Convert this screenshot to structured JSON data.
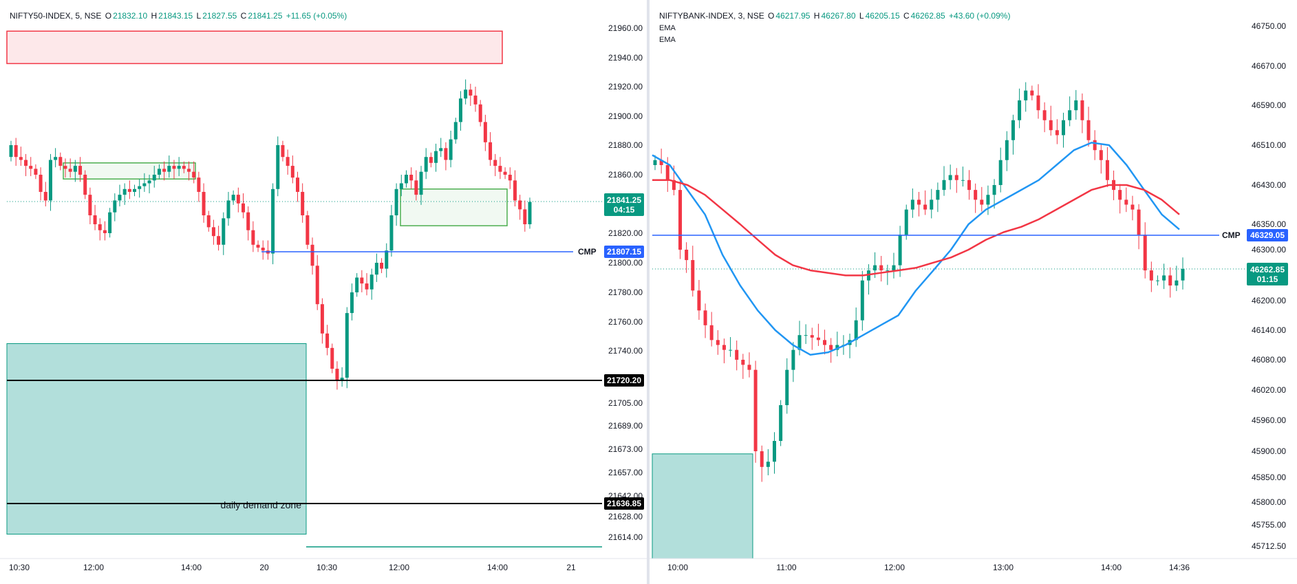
{
  "left": {
    "header": {
      "symbol": "NIFTY50-INDEX, 5, NSE",
      "open_label": "O",
      "open": "21832.10",
      "high_label": "H",
      "high": "21843.15",
      "low_label": "L",
      "low": "21827.55",
      "close_label": "C",
      "close": "21841.25",
      "change": "+11.65 (+0.05%)"
    },
    "tags": {
      "last_price": "21841.25",
      "countdown": "04:15",
      "cmp_price": "21807.15",
      "cmp_label": "CMP",
      "level_1": "21720.20",
      "level_2": "21636.85"
    },
    "zone_label": "daily demand zone"
  },
  "right": {
    "header": {
      "symbol": "NIFTYBANK-INDEX, 3, NSE",
      "open_label": "O",
      "open": "46217.95",
      "high_label": "H",
      "high": "46267.80",
      "low_label": "L",
      "low": "46205.15",
      "close_label": "C",
      "close": "46262.85",
      "change": "+43.60 (+0.09%)"
    },
    "ema_labels": [
      "EMA",
      "EMA"
    ],
    "tags": {
      "last_price": "46262.85",
      "countdown": "01:15",
      "cmp_price": "46329.05",
      "cmp_label": "CMP"
    }
  },
  "colors": {
    "up": "#089981",
    "down": "#f23645",
    "cmp_line": "#2962ff",
    "ema_fast": "#2196f3",
    "ema_slow": "#f23645",
    "demand_fill": "#b2dfdb",
    "supply_fill": "#fde8ea"
  },
  "chart_data": [
    {
      "type": "candlestick",
      "title": "NIFTY50-INDEX, 5, NSE",
      "y_tick_labels": [
        "21960.00",
        "21940.00",
        "21920.00",
        "21900.00",
        "21880.00",
        "21860.00",
        "21841.25",
        "21820.00",
        "21807.15",
        "21800.00",
        "21780.00",
        "21760.00",
        "21740.00",
        "21720.20",
        "21705.00",
        "21689.00",
        "21673.00",
        "21657.00",
        "21642.00",
        "21636.85",
        "21628.00",
        "21614.00"
      ],
      "x_tick_labels": [
        "10:30",
        "12:00",
        "14:00",
        "20",
        "10:30",
        "12:00",
        "14:00",
        "21"
      ],
      "ylim": [
        21610,
        21970
      ],
      "close_path": [
        21880,
        21872,
        21870,
        21866,
        21864,
        21860,
        21848,
        21842,
        21870,
        21872,
        21866,
        21864,
        21862,
        21866,
        21860,
        21846,
        21832,
        21826,
        21822,
        21820,
        21834,
        21842,
        21846,
        21850,
        21848,
        21850,
        21852,
        21854,
        21856,
        21860,
        21864,
        21862,
        21866,
        21864,
        21866,
        21864,
        21862,
        21858,
        21848,
        21832,
        21824,
        21818,
        21812,
        21830,
        21842,
        21846,
        21840,
        21834,
        21822,
        21812,
        21810,
        21808,
        21806,
        21850,
        21880,
        21872,
        21866,
        21858,
        21848,
        21832,
        21812,
        21798,
        21772,
        21752,
        21742,
        21728,
        21720,
        21722,
        21766,
        21780,
        21790,
        21786,
        21782,
        21792,
        21800,
        21796,
        21808,
        21832,
        21850,
        21854,
        21860,
        21856,
        21846,
        21862,
        21872,
        21868,
        21876,
        21878,
        21870,
        21884,
        21896,
        21912,
        21918,
        21914,
        21908,
        21896,
        21882,
        21870,
        21866,
        21862,
        21860,
        21856,
        21842,
        21836,
        21826,
        21841
      ],
      "cmp_level": 21807.15,
      "horizontal_levels": [
        21720.2,
        21636.85
      ],
      "zones": [
        {
          "kind": "supply",
          "y_top": 21958,
          "y_bottom": 21936
        },
        {
          "kind": "demand",
          "label": "daily demand zone",
          "y_top": 21745,
          "y_bottom": 21610
        },
        {
          "kind": "box",
          "y_top": 21868,
          "y_bottom": 21857
        },
        {
          "kind": "box",
          "y_top": 21850,
          "y_bottom": 21825
        }
      ]
    },
    {
      "type": "candlestick",
      "title": "NIFTYBANK-INDEX, 3, NSE",
      "y_tick_labels": [
        "46750.00",
        "46670.00",
        "46590.00",
        "46510.00",
        "46430.00",
        "46350.00",
        "46329.05",
        "46300.00",
        "46262.85",
        "46200.00",
        "46140.00",
        "46080.00",
        "46020.00",
        "45960.00",
        "45900.00",
        "45850.00",
        "45800.00",
        "45755.00",
        "45712.50"
      ],
      "x_tick_labels": [
        "10:00",
        "11:00",
        "12:00",
        "13:00",
        "14:00",
        "14:36"
      ],
      "ylim": [
        45690,
        46780
      ],
      "close_path": [
        46480,
        46470,
        46440,
        46420,
        46300,
        46280,
        46220,
        46180,
        46150,
        46120,
        46110,
        46100,
        46100,
        46080,
        46070,
        46060,
        45900,
        45870,
        45880,
        45920,
        45990,
        46060,
        46100,
        46130,
        46130,
        46125,
        46120,
        46110,
        46100,
        46110,
        46110,
        46120,
        46160,
        46240,
        46260,
        46270,
        46260,
        46260,
        46270,
        46330,
        46380,
        46400,
        46390,
        46380,
        46400,
        46420,
        46440,
        46450,
        46440,
        46440,
        46420,
        46400,
        46390,
        46410,
        46430,
        46480,
        46520,
        46560,
        46600,
        46620,
        46610,
        46580,
        46560,
        46540,
        46530,
        46560,
        46580,
        46600,
        46560,
        46520,
        46500,
        46480,
        46440,
        46420,
        46400,
        46390,
        46380,
        46330,
        46260,
        46240,
        46240,
        46250,
        46230,
        46240,
        46263
      ],
      "cmp_level": 46329.05,
      "series": [
        {
          "name": "EMA",
          "values": [
            46490,
            46470,
            46420,
            46370,
            46290,
            46230,
            46180,
            46140,
            46110,
            46090,
            46095,
            46110,
            46130,
            46150,
            46170,
            46220,
            46260,
            46300,
            46350,
            46380,
            46400,
            46420,
            46440,
            46470,
            46500,
            46515,
            46510,
            46470,
            46420,
            46370,
            46340
          ]
        },
        {
          "name": "EMA",
          "values": [
            46440,
            46440,
            46430,
            46410,
            46380,
            46350,
            46320,
            46290,
            46270,
            46260,
            46255,
            46250,
            46250,
            46255,
            46260,
            46265,
            46275,
            46285,
            46300,
            46320,
            46335,
            46345,
            46360,
            46380,
            46400,
            46420,
            46430,
            46430,
            46420,
            46400,
            46370
          ]
        }
      ],
      "zones": [
        {
          "kind": "demand",
          "y_top": 45895,
          "y_bottom": 45690
        }
      ]
    }
  ]
}
